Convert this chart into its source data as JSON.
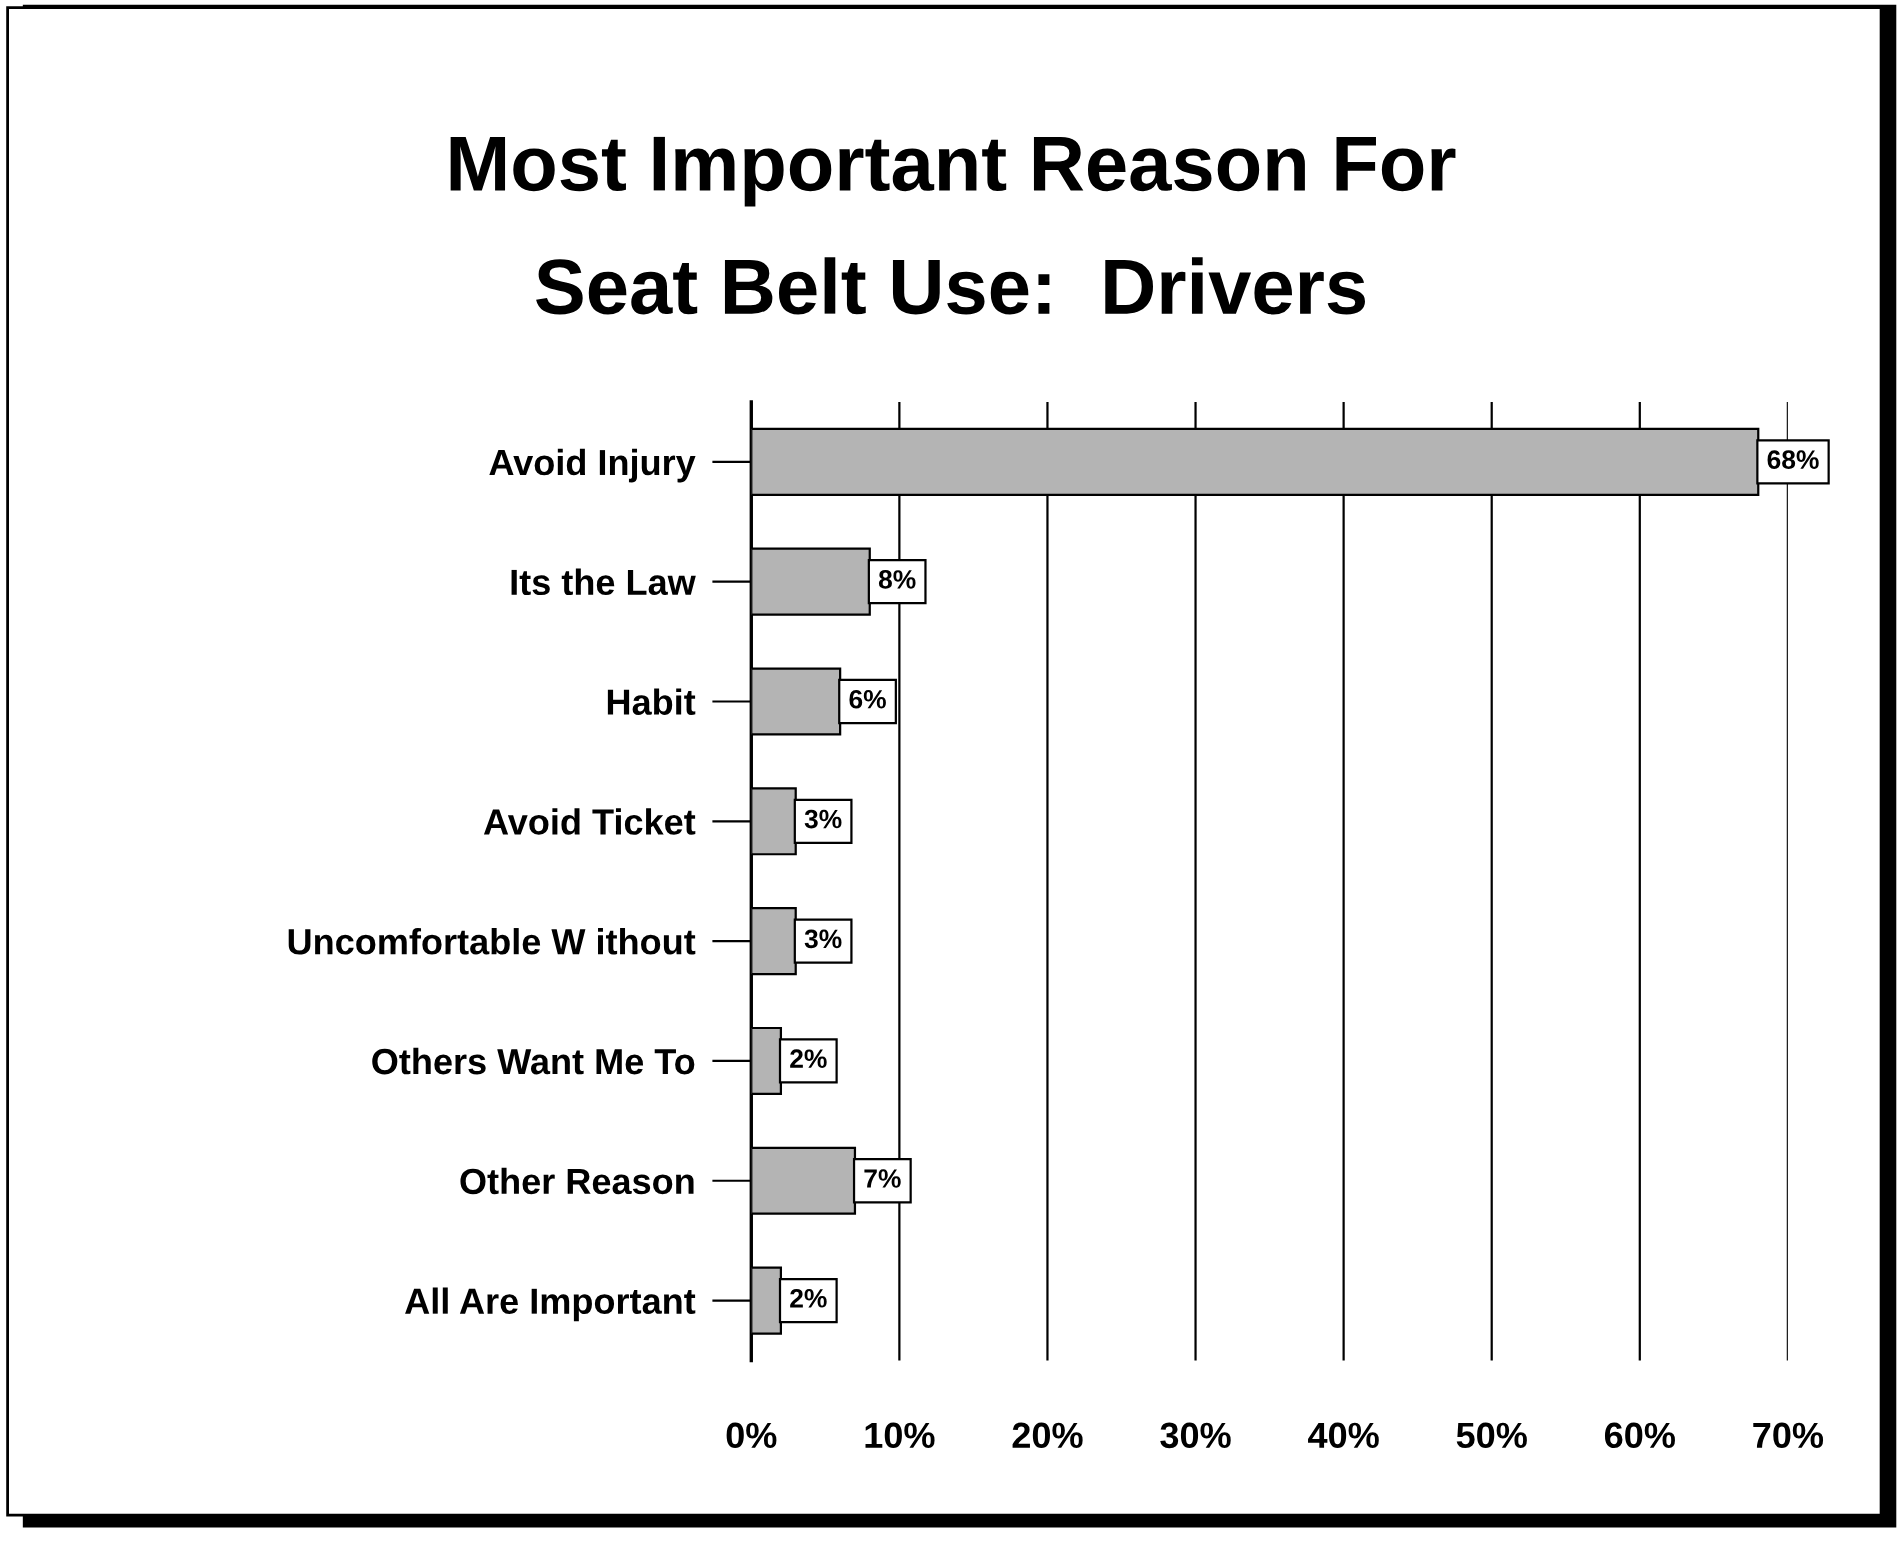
{
  "chart_data": {
    "type": "bar",
    "orientation": "horizontal",
    "title": "Most Important Reason For\nSeat Belt Use:  Drivers",
    "categories": [
      "Avoid Injury",
      "Its the Law",
      "Habit",
      "Avoid Ticket",
      "Uncomfortable W ithout",
      "Others Want Me To",
      "Other Reason",
      "All Are Important"
    ],
    "values": [
      68,
      8,
      6,
      3,
      3,
      2,
      7,
      2
    ],
    "value_labels": [
      "68%",
      "8%",
      "6%",
      "3%",
      "3%",
      "2%",
      "7%",
      "2%"
    ],
    "color": "#b4b4b4",
    "xlim": [
      0,
      70
    ],
    "xticks": [
      {
        "value": 0,
        "label": "0%"
      },
      {
        "value": 10,
        "label": "10%"
      },
      {
        "value": 20,
        "label": "20%"
      },
      {
        "value": 30,
        "label": "30%"
      },
      {
        "value": 40,
        "label": "40%"
      },
      {
        "value": 50,
        "label": "50%"
      },
      {
        "value": 60,
        "label": "60%"
      },
      {
        "value": 70,
        "label": "70%"
      }
    ],
    "grid": "x"
  }
}
